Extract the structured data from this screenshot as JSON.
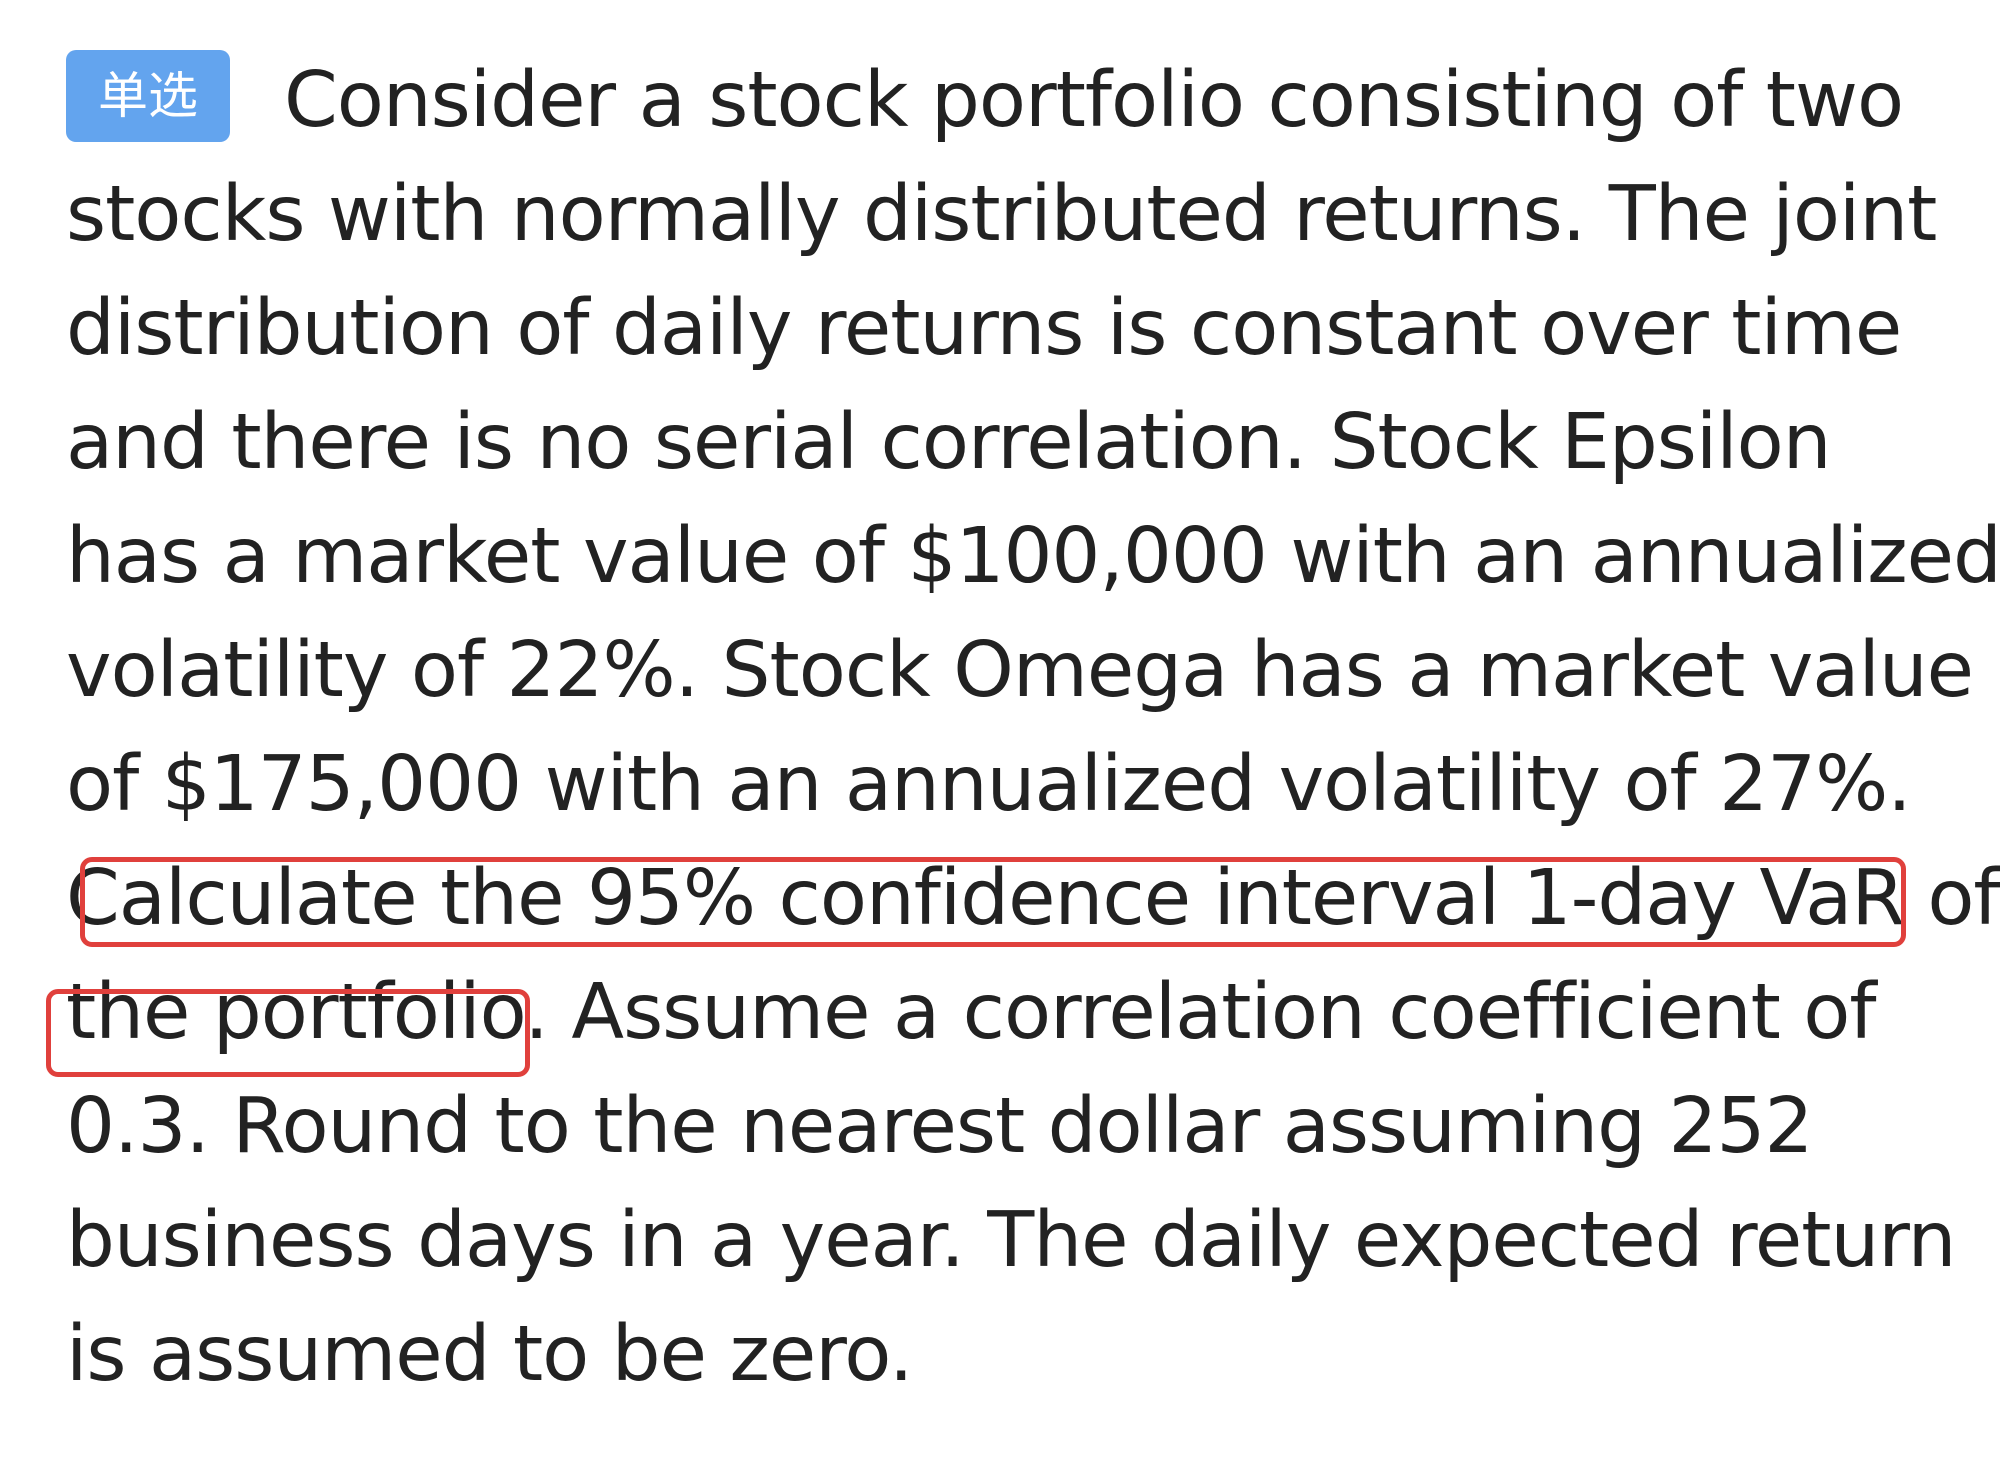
{
  "question": {
    "badge": "单选",
    "lines": [
      "Consider a stock portfolio consisting of two",
      "stocks with normally distributed returns. The joint",
      "distribution of daily returns is constant over time",
      "and there is no serial correlation. Stock Epsilon",
      "has a market value of $100,000 with an annualized",
      "volatility of 22%. Stock Omega has a market value",
      "of $175,000 with an annualized volatility of 27%.",
      "Calculate the 95% confidence interval 1-day VaR of",
      "the portfolio. Assume a correlation coefficient of",
      "0.3. Round to the nearest dollar assuming 252",
      "business days in a year. The daily expected return",
      "is assumed to be zero."
    ]
  },
  "colors": {
    "badge_background": "#63a4ee",
    "highlight_border": "#e0403c",
    "text": "#222222"
  }
}
